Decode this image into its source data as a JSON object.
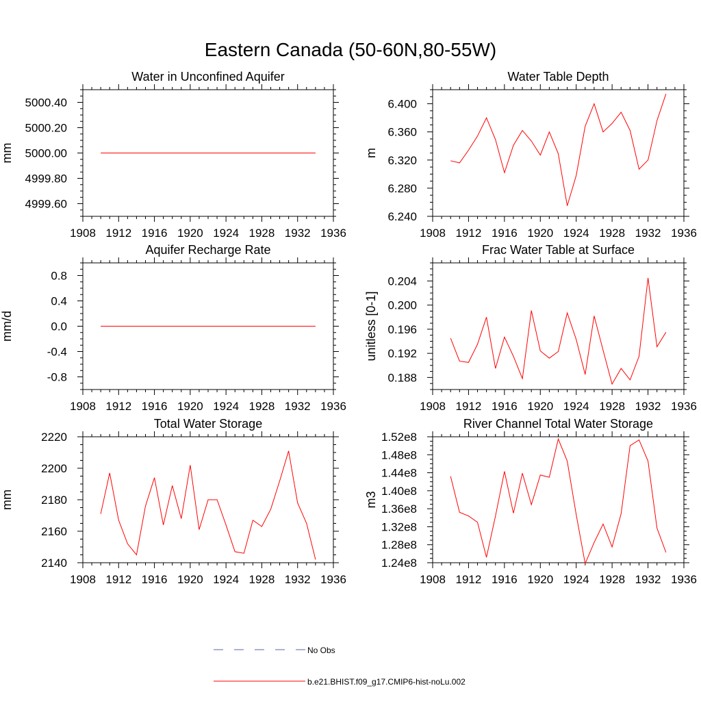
{
  "title": "Eastern Canada (50-60N,80-55W)",
  "colors": {
    "model": "#ff0000",
    "obs": "#5566aa",
    "axis": "#000000"
  },
  "legend": {
    "entries": [
      {
        "label": "No Obs",
        "style": "dashed",
        "color": "#5566aa"
      },
      {
        "label": "b.e21.BHIST.f09_g17.CMIP6-hist-noLu.002",
        "style": "solid",
        "color": "#ff0000"
      }
    ]
  },
  "chart_data": [
    {
      "type": "line",
      "title": "Water in Unconfined Aquifer",
      "ylabel": "mm",
      "xlim": [
        1908,
        1936
      ],
      "ylim": [
        4999.5,
        5000.5
      ],
      "xticks": [
        1908,
        1912,
        1916,
        1920,
        1924,
        1928,
        1932,
        1936
      ],
      "yticks": [
        4999.6,
        4999.8,
        5000.0,
        5000.2,
        5000.4
      ],
      "ytick_labels": [
        "4999.60",
        "4999.80",
        "5000.00",
        "5000.20",
        "5000.40"
      ],
      "x": [
        1910,
        1911,
        1912,
        1913,
        1914,
        1915,
        1916,
        1917,
        1918,
        1919,
        1920,
        1921,
        1922,
        1923,
        1924,
        1925,
        1926,
        1927,
        1928,
        1929,
        1930,
        1931,
        1932,
        1933,
        1934
      ],
      "series": [
        {
          "values": [
            5000,
            5000,
            5000,
            5000,
            5000,
            5000,
            5000,
            5000,
            5000,
            5000,
            5000,
            5000,
            5000,
            5000,
            5000,
            5000,
            5000,
            5000,
            5000,
            5000,
            5000,
            5000,
            5000,
            5000,
            5000
          ]
        }
      ]
    },
    {
      "type": "line",
      "title": "Water Table Depth",
      "ylabel": "m",
      "xlim": [
        1908,
        1936
      ],
      "ylim": [
        6.24,
        6.42
      ],
      "xticks": [
        1908,
        1912,
        1916,
        1920,
        1924,
        1928,
        1932,
        1936
      ],
      "yticks": [
        6.24,
        6.28,
        6.32,
        6.36,
        6.4
      ],
      "ytick_labels": [
        "6.240",
        "6.280",
        "6.320",
        "6.360",
        "6.400"
      ],
      "x": [
        1910,
        1911,
        1912,
        1913,
        1914,
        1915,
        1916,
        1917,
        1918,
        1919,
        1920,
        1921,
        1922,
        1923,
        1924,
        1925,
        1926,
        1927,
        1928,
        1929,
        1930,
        1931,
        1932,
        1933,
        1934
      ],
      "series": [
        {
          "values": [
            6.319,
            6.316,
            6.334,
            6.354,
            6.38,
            6.349,
            6.302,
            6.341,
            6.362,
            6.347,
            6.327,
            6.36,
            6.329,
            6.255,
            6.298,
            6.368,
            6.4,
            6.36,
            6.372,
            6.388,
            6.362,
            6.307,
            6.32,
            6.376,
            6.414
          ]
        }
      ]
    },
    {
      "type": "line",
      "title": "Aquifer Recharge Rate",
      "ylabel": "mm/d",
      "xlim": [
        1908,
        1936
      ],
      "ylim": [
        -1,
        1
      ],
      "xticks": [
        1908,
        1912,
        1916,
        1920,
        1924,
        1928,
        1932,
        1936
      ],
      "yticks": [
        -0.8,
        -0.4,
        0,
        0.4,
        0.8
      ],
      "ytick_labels": [
        "-0.8",
        "-0.4",
        "0.0",
        "0.4",
        "0.8"
      ],
      "x": [
        1910,
        1911,
        1912,
        1913,
        1914,
        1915,
        1916,
        1917,
        1918,
        1919,
        1920,
        1921,
        1922,
        1923,
        1924,
        1925,
        1926,
        1927,
        1928,
        1929,
        1930,
        1931,
        1932,
        1933,
        1934
      ],
      "series": [
        {
          "values": [
            0,
            0,
            0,
            0,
            0,
            0,
            0,
            0,
            0,
            0,
            0,
            0,
            0,
            0,
            0,
            0,
            0,
            0,
            0,
            0,
            0,
            0,
            0,
            0,
            0
          ]
        }
      ]
    },
    {
      "type": "line",
      "title": "Frac Water Table at Surface",
      "ylabel": "unitless [0-1]",
      "xlim": [
        1908,
        1936
      ],
      "ylim": [
        0.186,
        0.207
      ],
      "xticks": [
        1908,
        1912,
        1916,
        1920,
        1924,
        1928,
        1932,
        1936
      ],
      "yticks": [
        0.188,
        0.192,
        0.196,
        0.2,
        0.204
      ],
      "ytick_labels": [
        "0.188",
        "0.192",
        "0.196",
        "0.200",
        "0.204"
      ],
      "x": [
        1910,
        1911,
        1912,
        1913,
        1914,
        1915,
        1916,
        1917,
        1918,
        1919,
        1920,
        1921,
        1922,
        1923,
        1924,
        1925,
        1926,
        1927,
        1928,
        1929,
        1930,
        1931,
        1932,
        1933,
        1934
      ],
      "series": [
        {
          "values": [
            0.1945,
            0.1907,
            0.1905,
            0.1935,
            0.198,
            0.1895,
            0.1947,
            0.1915,
            0.1878,
            0.1991,
            0.1924,
            0.1912,
            0.1923,
            0.1987,
            0.1943,
            0.1885,
            0.1982,
            0.1925,
            0.1869,
            0.1895,
            0.1876,
            0.1915,
            0.2045,
            0.1931,
            0.1955
          ]
        }
      ]
    },
    {
      "type": "line",
      "title": "Total Water Storage",
      "ylabel": "mm",
      "xlim": [
        1908,
        1936
      ],
      "ylim": [
        2140,
        2220
      ],
      "xticks": [
        1908,
        1912,
        1916,
        1920,
        1924,
        1928,
        1932,
        1936
      ],
      "yticks": [
        2140,
        2160,
        2180,
        2200,
        2220
      ],
      "ytick_labels": [
        "2140",
        "2160",
        "2180",
        "2200",
        "2220"
      ],
      "x": [
        1910,
        1911,
        1912,
        1913,
        1914,
        1915,
        1916,
        1917,
        1918,
        1919,
        1920,
        1921,
        1922,
        1923,
        1924,
        1925,
        1926,
        1927,
        1928,
        1929,
        1930,
        1931,
        1932,
        1933,
        1934
      ],
      "series": [
        {
          "values": [
            2171,
            2197,
            2167,
            2152,
            2145,
            2176,
            2194,
            2164,
            2189,
            2168,
            2202,
            2161,
            2180,
            2180,
            2164,
            2147,
            2146,
            2167,
            2163,
            2174,
            2192,
            2211,
            2178,
            2165,
            2142
          ]
        }
      ]
    },
    {
      "type": "line",
      "title": "River Channel Total Water Storage",
      "ylabel": "m3",
      "xlim": [
        1908,
        1936
      ],
      "ylim": [
        124000000,
        152000000
      ],
      "xticks": [
        1908,
        1912,
        1916,
        1920,
        1924,
        1928,
        1932,
        1936
      ],
      "yticks": [
        124000000,
        128000000,
        132000000,
        136000000,
        140000000,
        144000000,
        148000000,
        152000000
      ],
      "ytick_labels": [
        "1.24e8",
        "1.28e8",
        "1.32e8",
        "1.36e8",
        "1.40e8",
        "1.44e8",
        "1.48e8",
        "1.52e8"
      ],
      "x": [
        1910,
        1911,
        1912,
        1913,
        1914,
        1915,
        1916,
        1917,
        1918,
        1919,
        1920,
        1921,
        1922,
        1923,
        1924,
        1925,
        1926,
        1927,
        1928,
        1929,
        1930,
        1931,
        1932,
        1933,
        1934
      ],
      "series": [
        {
          "values": [
            143200000,
            135200000,
            134400000,
            133000000,
            125200000,
            134400000,
            144300000,
            135000000,
            143900000,
            136900000,
            143500000,
            143000000,
            151500000,
            146600000,
            134700000,
            123800000,
            128500000,
            132600000,
            127500000,
            134900000,
            150000000,
            151300000,
            146600000,
            131700000,
            126300000
          ]
        }
      ]
    }
  ]
}
